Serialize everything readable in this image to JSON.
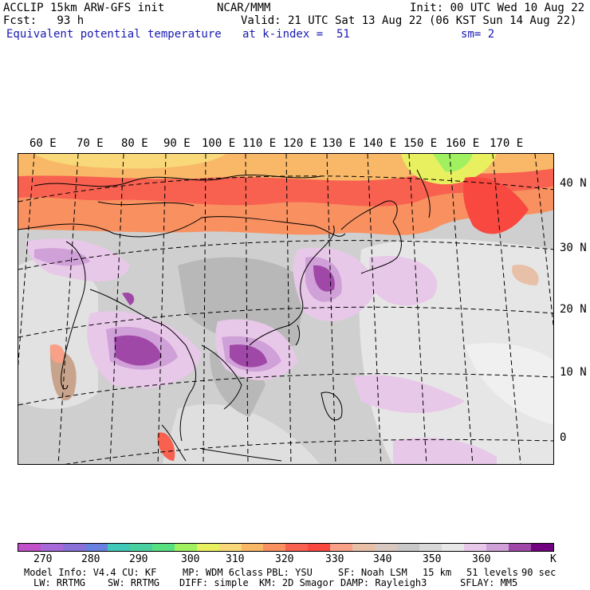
{
  "header": {
    "model_title": "ACCLIP 15km ARW-GFS init",
    "org": "NCAR/MMM",
    "init": "Init: 00 UTC Wed 10 Aug 22",
    "fcst": "Fcst:   93 h",
    "valid": "Valid: 21 UTC Sat 13 Aug 22 (06 KST Sun 14 Aug 22)",
    "field": "Equivalent potential temperature",
    "level": "at k-index =  51",
    "smooth": "sm= 2"
  },
  "map": {
    "lon_labels": [
      "60 E",
      "70 E",
      "80 E",
      "90 E",
      "100 E",
      "110 E",
      "120 E",
      "130 E",
      "140 E",
      "150 E",
      "160 E",
      "170 E"
    ],
    "lat_labels": [
      "40 N",
      "30 N",
      "20 N",
      "10 N",
      "0"
    ]
  },
  "colorbar": {
    "colors": [
      "#c050c8",
      "#a868d8",
      "#8870d8",
      "#6880e0",
      "#40c8b8",
      "#48d0a0",
      "#58e080",
      "#a0f060",
      "#e8f060",
      "#f8d878",
      "#f8b868",
      "#f89060",
      "#f86050",
      "#f84840",
      "#f8a088",
      "#e8c0a8",
      "#d8c8c0",
      "#c8c8c8",
      "#d8d8d8",
      "#e8e8e8",
      "#e8c8e8",
      "#d0a0d8",
      "#a048a8",
      "#700080"
    ],
    "labels": [
      "270",
      "280",
      "290",
      "300",
      "310",
      "320",
      "330",
      "340",
      "350",
      "360"
    ],
    "unit": "K"
  },
  "model_info": {
    "line1": [
      "Model Info: V4.4",
      "CU: KF",
      "MP: WDM 6class",
      "PBL: YSU",
      "SF: Noah LSM",
      "15 km",
      "51 levels",
      "90 sec"
    ],
    "line2": [
      "LW: RRTMG",
      "SW: RRTMG",
      "DIFF: simple",
      "KM: 2D Smagor",
      "DAMP: Rayleigh3",
      "SFLAY: MM5"
    ]
  }
}
